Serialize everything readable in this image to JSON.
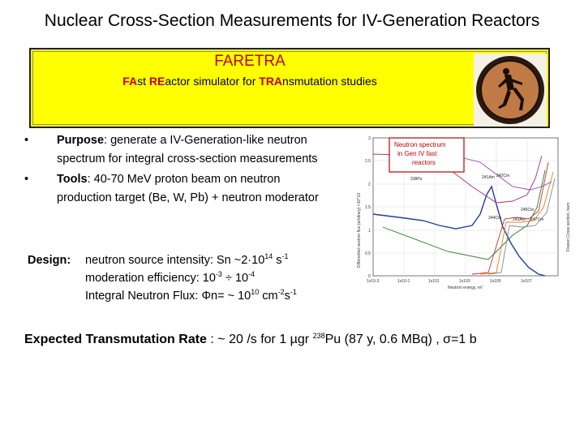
{
  "title": "Nuclear Cross-Section Measurements for IV-Generation Reactors",
  "banner": {
    "name": "FARETRA",
    "subtitle_parts": [
      {
        "text": "FA",
        "highlight": true
      },
      {
        "text": "st  ",
        "highlight": false
      },
      {
        "text": "RE",
        "highlight": true
      },
      {
        "text": "actor simulator for ",
        "highlight": false
      },
      {
        "text": "TRA",
        "highlight": true
      },
      {
        "text": "nsmutation studies",
        "highlight": false
      }
    ],
    "background_color": "#ffff00",
    "accent_color": "#c00000"
  },
  "bullets": [
    {
      "label": "Purpose",
      "text": ": generate a IV-Generation-like neutron spectrum for integral cross-section measurements"
    },
    {
      "label": "Tools",
      "text": ": 40-70 MeV proton beam on neutron production target (Be, W, Pb) + neutron moderator"
    }
  ],
  "design": {
    "label": "Design:",
    "line1": "neutron source intensity:  Sn ~2·10",
    "line1_exp": "14",
    "line1_unit": " s",
    "line1_unit_exp": "-1",
    "line2": "moderation efficiency: 10",
    "line2_exp1": "-3",
    "line2_mid": " ÷ 10",
    "line2_exp2": "-4",
    "line3": "Integral Neutron Flux: Φn= ~ 10",
    "line3_exp": "10",
    "line3_unit": " cm",
    "line3_unit_exp1": "-2",
    "line3_unit_mid": "s",
    "line3_unit_exp2": "-1"
  },
  "figure": {
    "callout": "Neutron spectrum in Gen IV fast reactors",
    "labels": [
      "238Pu",
      "241Am",
      "242Cm",
      "244Cm",
      "245Cm",
      "243Am",
      "247Cm"
    ],
    "x_ticks": [
      "1x10-3",
      "1x10-1",
      "1x101",
      "1x103",
      "1x105",
      "1x107"
    ],
    "y_left_ticks": [
      "3",
      "2.5",
      "2",
      "1.5",
      "1",
      "0.5",
      "0"
    ],
    "y_left_label": "Differential neutron flux (arbitrary) ×10^13",
    "y_right_label": "Fission Cross section, barn",
    "x_label": "Neutron energy, eV"
  },
  "expected": {
    "label": "Expected Transmutation Rate",
    "rest": " : ~ 20 /s  for 1 µgr  ",
    "iso_mass": "238",
    "iso_symbol": "Pu",
    "tail": " (87 y, 0.6 MBq) , σ=1 b"
  }
}
